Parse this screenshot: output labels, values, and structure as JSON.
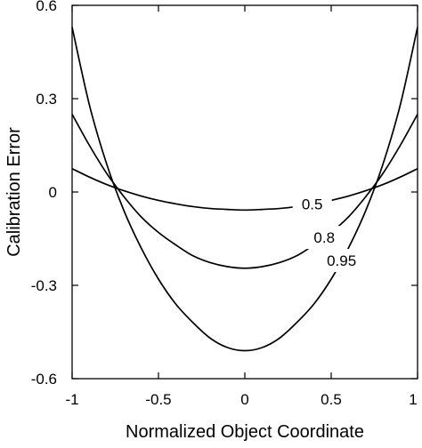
{
  "chart_data": {
    "type": "line",
    "title": "",
    "xlabel": "Normalized Object Coordinate",
    "ylabel": "Calibration Error",
    "xlim": [
      -1,
      1
    ],
    "ylim": [
      -0.6,
      0.6
    ],
    "xticks": [
      -1,
      -0.5,
      0,
      0.5,
      1
    ],
    "xtick_labels": [
      "-1",
      "-0.5",
      "0",
      "0.5",
      "1"
    ],
    "yticks": [
      -0.6,
      -0.3,
      0,
      0.3,
      0.6
    ],
    "ytick_labels": [
      "-0.6",
      "-0.3",
      "0",
      "0.3",
      "0.6"
    ],
    "grid": false,
    "legend": "none",
    "series": [
      {
        "name": "0.5",
        "x": [
          -1,
          -0.9,
          -0.8,
          -0.7,
          -0.6,
          -0.5,
          -0.4,
          -0.3,
          -0.2,
          -0.1,
          0,
          0.1,
          0.2,
          0.3,
          0.4,
          0.5,
          0.6,
          0.7,
          0.8,
          0.9,
          1
        ],
        "y": [
          0.075,
          0.048,
          0.024,
          0.004,
          -0.013,
          -0.027,
          -0.038,
          -0.047,
          -0.053,
          -0.056,
          -0.058,
          -0.056,
          -0.053,
          -0.047,
          -0.038,
          -0.027,
          -0.013,
          0.004,
          0.024,
          0.048,
          0.075
        ]
      },
      {
        "name": "0.8",
        "x": [
          -1,
          -0.9,
          -0.8,
          -0.7,
          -0.6,
          -0.5,
          -0.4,
          -0.3,
          -0.2,
          -0.1,
          0,
          0.1,
          0.2,
          0.3,
          0.4,
          0.5,
          0.6,
          0.7,
          0.8,
          0.9,
          1
        ],
        "y": [
          0.25,
          0.15,
          0.06,
          -0.015,
          -0.08,
          -0.13,
          -0.17,
          -0.205,
          -0.227,
          -0.24,
          -0.245,
          -0.24,
          -0.227,
          -0.205,
          -0.17,
          -0.13,
          -0.08,
          -0.015,
          0.06,
          0.15,
          0.25
        ]
      },
      {
        "name": "0.95",
        "x": [
          -1,
          -0.9,
          -0.8,
          -0.7,
          -0.6,
          -0.5,
          -0.4,
          -0.3,
          -0.2,
          -0.1,
          0,
          0.1,
          0.2,
          0.3,
          0.4,
          0.5,
          0.6,
          0.7,
          0.8,
          0.9,
          1
        ],
        "y": [
          0.53,
          0.28,
          0.09,
          -0.06,
          -0.18,
          -0.28,
          -0.36,
          -0.42,
          -0.47,
          -0.5,
          -0.51,
          -0.5,
          -0.47,
          -0.42,
          -0.36,
          -0.28,
          -0.18,
          -0.06,
          0.09,
          0.28,
          0.53
        ]
      }
    ],
    "annotations": [
      {
        "text": "0.5",
        "series": "0.5"
      },
      {
        "text": "0.8",
        "series": "0.8"
      },
      {
        "text": "0.95",
        "series": "0.95"
      }
    ]
  }
}
